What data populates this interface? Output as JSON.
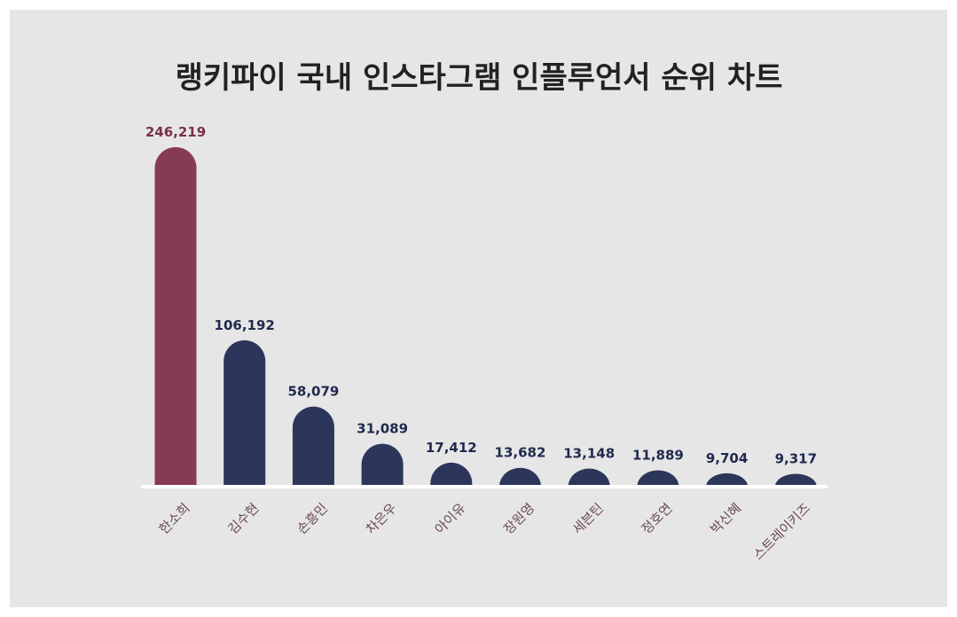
{
  "chart_data": {
    "type": "bar",
    "title": "랭키파이 국내 인스타그램 인플루언서 순위 차트",
    "categories": [
      "한소희",
      "김수현",
      "손흥민",
      "차은우",
      "아이유",
      "장원영",
      "세븐틴",
      "정호연",
      "박신혜",
      "스트레이키즈"
    ],
    "values": [
      246219,
      106192,
      58079,
      31089,
      17412,
      13682,
      13148,
      11889,
      9704,
      9317
    ],
    "value_labels": [
      "246,219",
      "106,192",
      "58,079",
      "31,089",
      "17,412",
      "13,682",
      "13,148",
      "11,889",
      "9,704",
      "9,317"
    ],
    "xlabel": "",
    "ylabel": "",
    "ylim": [
      0,
      246219
    ],
    "grid": false,
    "legend": "none",
    "colors": {
      "highlight": "#873a55",
      "bar": "#2b365a",
      "highlight_label": "#7a2f49",
      "label": "#1f2a4d",
      "category_label": "#6b4a52",
      "baseline": "#ffffff",
      "background": "#e6e6e6"
    }
  }
}
